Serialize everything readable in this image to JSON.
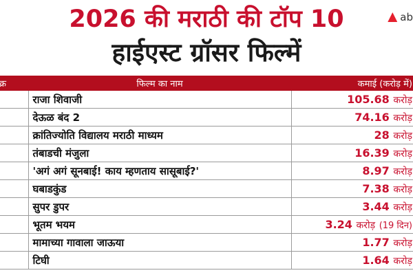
{
  "header": {
    "title_line1": "2026 की मराठी की टॉप 10",
    "title_line2": "हाईएस्ट ग्रॉसर फिल्में",
    "logo_text": "ab"
  },
  "table": {
    "columns": [
      "क्र",
      "फिल्म का नाम",
      "कमाई (करोड़ में)"
    ],
    "rows": [
      {
        "name": "राजा शिवाजी",
        "value": "105.68",
        "unit": "करोड़",
        "note": ""
      },
      {
        "name": "देऊळ बंद 2",
        "value": "74.16",
        "unit": "करोड़",
        "note": ""
      },
      {
        "name": "क्रांतिज्योति विद्यालय मराठी माध्यम",
        "value": "28",
        "unit": "करोड़",
        "note": ""
      },
      {
        "name": "तंबाडची मंजुला",
        "value": "16.39",
        "unit": "करोड़",
        "note": ""
      },
      {
        "name": "'अगं अगं सूनबाई! काय म्हणताय सासूबाई?'",
        "value": "8.97",
        "unit": "करोड़",
        "note": ""
      },
      {
        "name": "घबाडकुंड",
        "value": "7.38",
        "unit": "करोड़",
        "note": ""
      },
      {
        "name": "सुपर डुपर",
        "value": "3.44",
        "unit": "करोड़",
        "note": ""
      },
      {
        "name": "भूतम भयम",
        "value": "3.24",
        "unit": "करोड़",
        "note": "(19 दिन)"
      },
      {
        "name": "मामाच्या गावाला जाऊया",
        "value": "1.77",
        "unit": "करोड़",
        "note": ""
      },
      {
        "name": "टिघी",
        "value": "1.64",
        "unit": "करोड़",
        "note": ""
      }
    ]
  },
  "colors": {
    "accent_red": "#c8102e",
    "header_bg": "#b30e1e"
  }
}
